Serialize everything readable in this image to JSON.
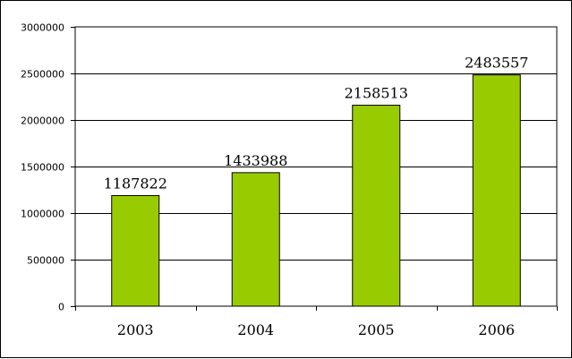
{
  "chart_data": {
    "type": "bar",
    "title": "",
    "xlabel": "",
    "ylabel": "",
    "categories": [
      "2003",
      "2004",
      "2005",
      "2006"
    ],
    "values": [
      1187822,
      1433988,
      2158513,
      2483557
    ],
    "data_labels": [
      "1187822",
      "1433988",
      "2158513",
      "2483557"
    ],
    "ylim": [
      0,
      3000000
    ],
    "yticks": [
      0,
      500000,
      1000000,
      1500000,
      2000000,
      2500000,
      3000000
    ],
    "ytick_labels": [
      "0",
      "500000",
      "1000000",
      "1500000",
      "2000000",
      "2500000",
      "3000000"
    ],
    "grid": true,
    "legend": "none",
    "bar_color": "#99CC00",
    "bar_edge_color": "#000000"
  }
}
